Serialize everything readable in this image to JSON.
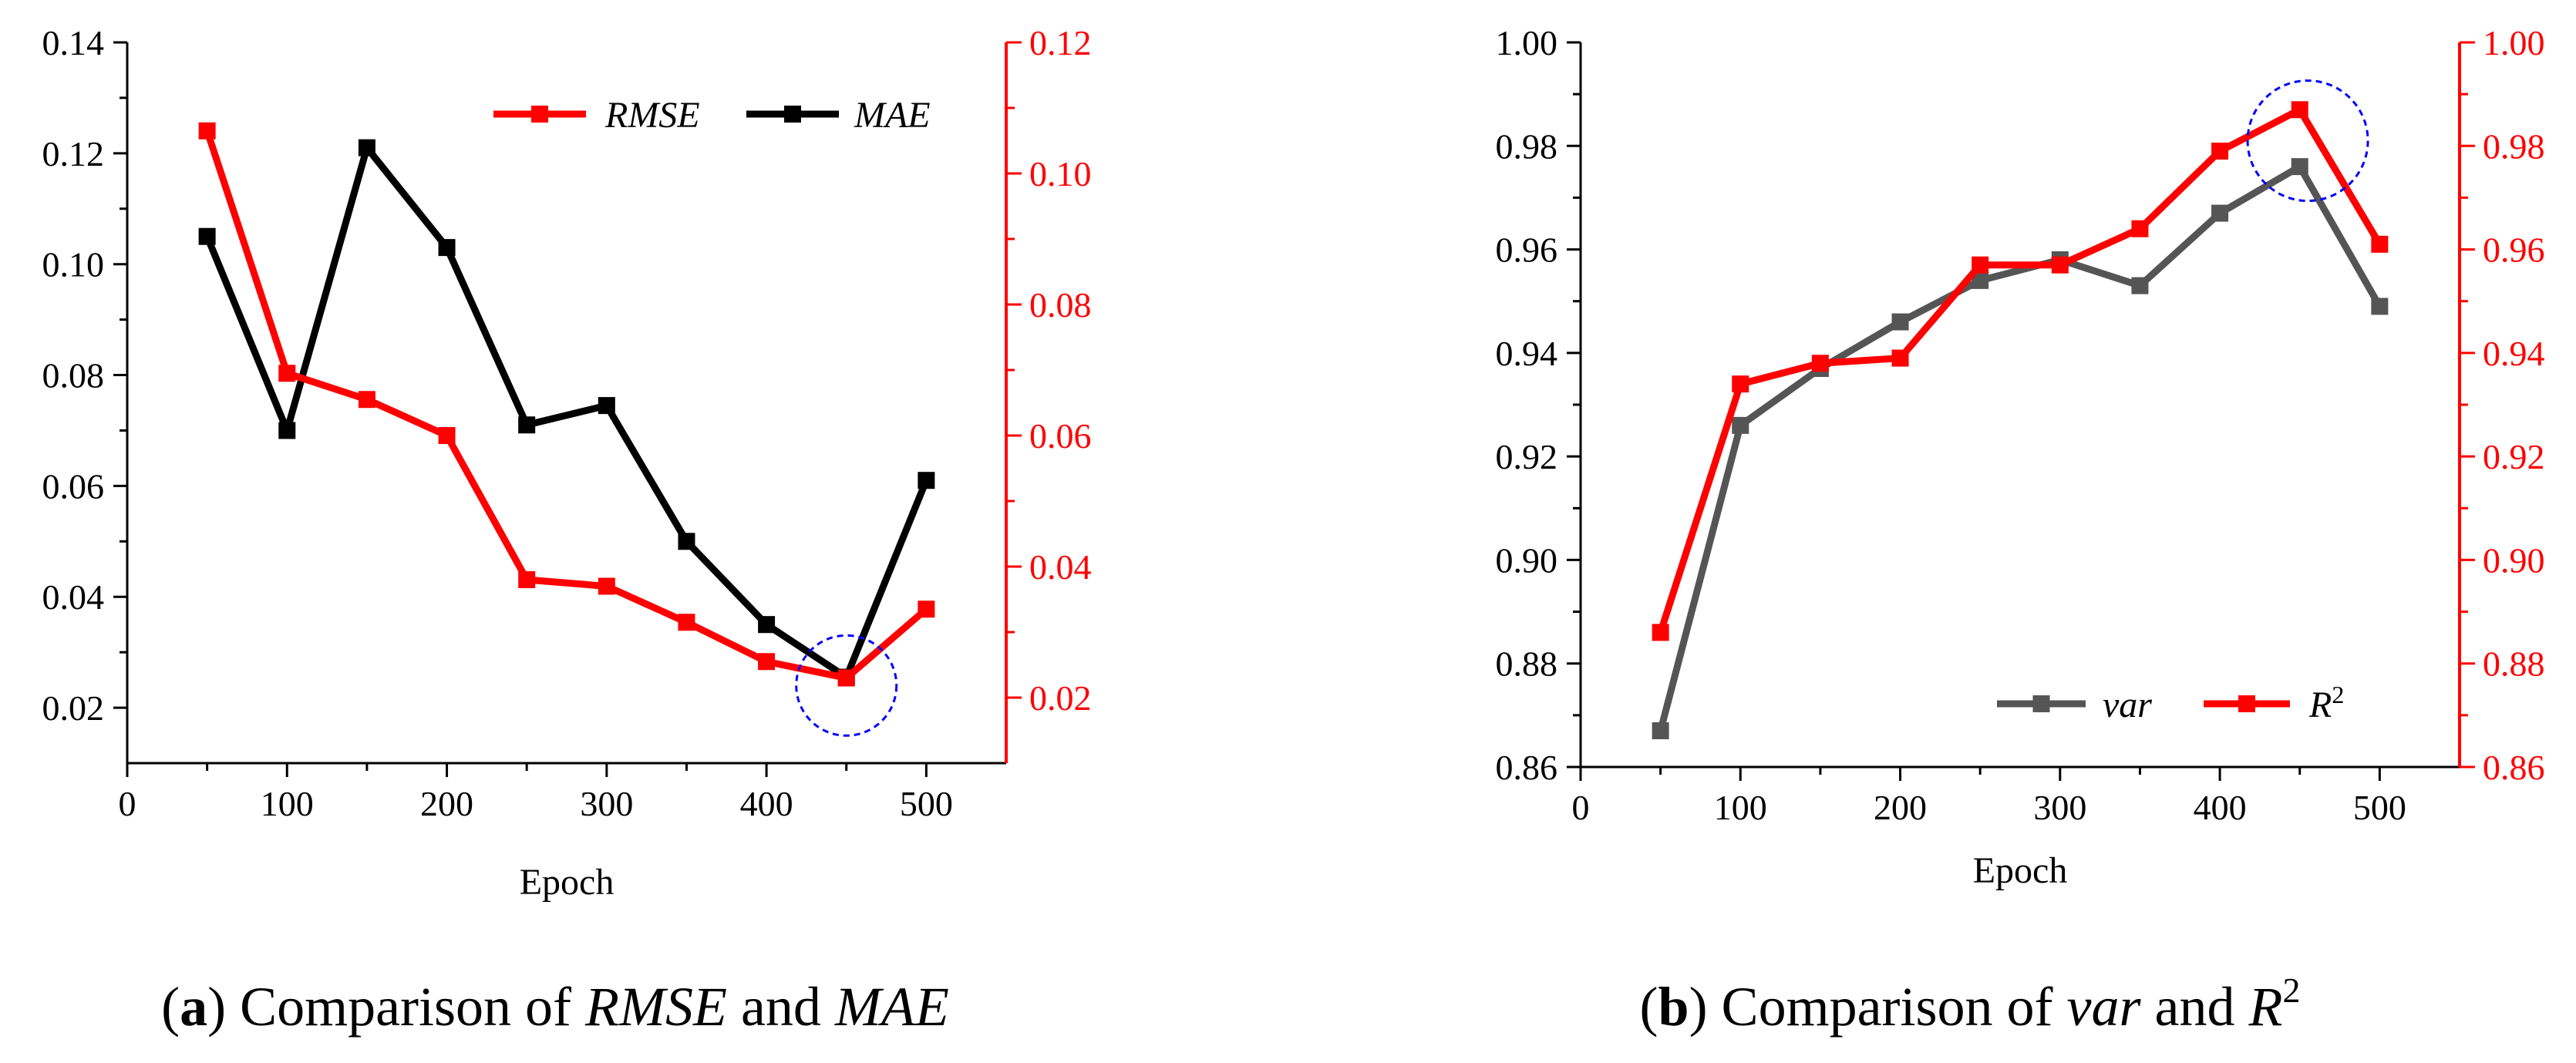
{
  "chart_data": [
    {
      "type": "line",
      "id": "a",
      "caption": {
        "label": "a",
        "prefix": "Comparison of ",
        "term1": "RMSE",
        "middle": " and ",
        "term2": "MAE"
      },
      "xlabel": "Epoch",
      "xlim": [
        0,
        550
      ],
      "xticks": [
        0,
        100,
        200,
        300,
        400,
        500
      ],
      "left_axis": {
        "ylim": [
          0.01,
          0.14
        ],
        "ticks": [
          0.02,
          0.04,
          0.06,
          0.08,
          0.1,
          0.12,
          0.14
        ],
        "tick_labels": [
          "0.02",
          "0.04",
          "0.06",
          "0.08",
          "0.10",
          "0.12",
          "0.14"
        ],
        "color": "#000000"
      },
      "right_axis": {
        "ylim": [
          0.01,
          0.12
        ],
        "ticks": [
          0.02,
          0.04,
          0.06,
          0.08,
          0.1,
          0.12
        ],
        "tick_labels": [
          "0.02",
          "0.04",
          "0.06",
          "0.08",
          "0.10",
          "0.12"
        ],
        "color": "#ff0000"
      },
      "x": [
        50,
        100,
        150,
        200,
        250,
        300,
        350,
        400,
        450,
        500
      ],
      "series": [
        {
          "name": "RMSE",
          "color": "#ff0000",
          "axis": "right",
          "values": [
            0.1065,
            0.0695,
            0.0655,
            0.06,
            0.038,
            0.037,
            0.0315,
            0.0255,
            0.023,
            0.0335
          ]
        },
        {
          "name": "MAE",
          "color": "#000000",
          "axis": "left",
          "values": [
            0.105,
            0.07,
            0.121,
            0.103,
            0.071,
            0.0745,
            0.05,
            0.035,
            0.0255,
            0.061
          ]
        }
      ],
      "legend": [
        "RMSE",
        "MAE"
      ],
      "legend_position": "top-right",
      "highlight": {
        "x": 450,
        "y": 0.024,
        "axis": "left",
        "color": "#0000ff"
      }
    },
    {
      "type": "line",
      "id": "b",
      "caption": {
        "label": "b",
        "prefix": "Comparison of ",
        "term1": "var",
        "middle": " and ",
        "term2": "R",
        "sup": "2"
      },
      "xlabel": "Epoch",
      "xlim": [
        0,
        550
      ],
      "xticks": [
        0,
        100,
        200,
        300,
        400,
        500
      ],
      "left_axis": {
        "ylim": [
          0.86,
          1.0
        ],
        "ticks": [
          0.86,
          0.88,
          0.9,
          0.92,
          0.94,
          0.96,
          0.98,
          1.0
        ],
        "tick_labels": [
          "0.86",
          "0.88",
          "0.90",
          "0.92",
          "0.94",
          "0.96",
          "0.98",
          "1.00"
        ],
        "color": "#000000"
      },
      "right_axis": {
        "ylim": [
          0.86,
          1.0
        ],
        "ticks": [
          0.86,
          0.88,
          0.9,
          0.92,
          0.94,
          0.96,
          0.98,
          1.0
        ],
        "tick_labels": [
          "0.86",
          "0.88",
          "0.90",
          "0.92",
          "0.94",
          "0.96",
          "0.98",
          "1.00"
        ],
        "color": "#ff0000"
      },
      "x": [
        50,
        100,
        150,
        200,
        250,
        300,
        350,
        400,
        450,
        500
      ],
      "series": [
        {
          "name": "var",
          "color": "#555555",
          "axis": "left",
          "values": [
            0.867,
            0.926,
            0.937,
            0.946,
            0.954,
            0.958,
            0.953,
            0.967,
            0.976,
            0.949
          ]
        },
        {
          "name": "R2",
          "label": "R",
          "sup": "2",
          "color": "#ff0000",
          "axis": "right",
          "values": [
            0.886,
            0.934,
            0.938,
            0.939,
            0.957,
            0.957,
            0.964,
            0.979,
            0.987,
            0.961
          ]
        }
      ],
      "legend": [
        "var",
        "R2"
      ],
      "legend_position": "bottom-right",
      "highlight": {
        "x": 455,
        "y": 0.981,
        "axis": "left",
        "color": "#0000ff"
      }
    }
  ]
}
